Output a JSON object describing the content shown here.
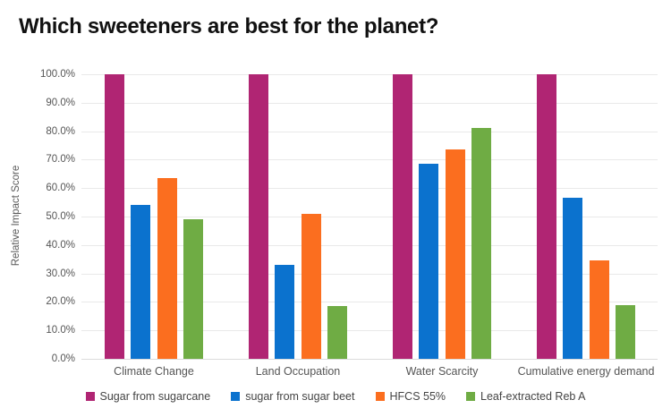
{
  "page": {
    "title": "Which sweeteners are best for the planet?"
  },
  "chart_data": {
    "type": "bar",
    "title": "Which sweeteners are best for the planet?",
    "xlabel": "",
    "ylabel": "Relative Impact Score",
    "ylim": [
      0,
      100
    ],
    "ytick_step": 10,
    "ytick_labels": [
      "0.0%",
      "10.0%",
      "20.0%",
      "30.0%",
      "40.0%",
      "50.0%",
      "60.0%",
      "70.0%",
      "80.0%",
      "90.0%",
      "100.0%"
    ],
    "grid": true,
    "legend_position": "bottom",
    "categories": [
      "Climate Change",
      "Land Occupation",
      "Water Scarcity",
      "Cumulative energy demand"
    ],
    "series": [
      {
        "name": "Sugar from sugarcane",
        "color": "#B02573",
        "values": [
          100,
          100,
          100,
          100
        ]
      },
      {
        "name": "sugar from sugar beet",
        "color": "#0B72CE",
        "values": [
          54,
          33,
          68.5,
          56.5
        ]
      },
      {
        "name": "HFCS 55%",
        "color": "#FB6E1F",
        "values": [
          63.5,
          51,
          73.5,
          34.5
        ]
      },
      {
        "name": "Leaf-extracted Reb A",
        "color": "#6FAC44",
        "values": [
          49,
          18.5,
          81,
          19
        ]
      }
    ]
  }
}
